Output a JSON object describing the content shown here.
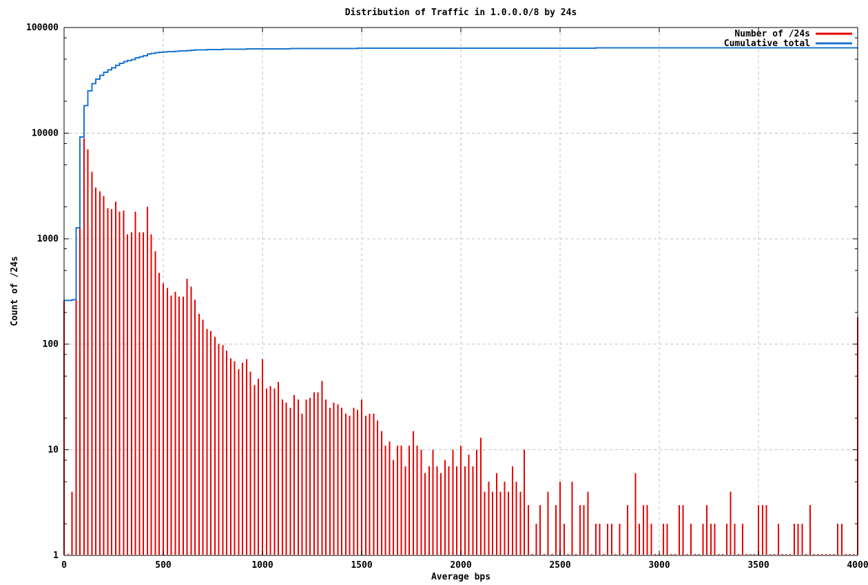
{
  "window": {
    "background": "#ffffff"
  },
  "chart_data": {
    "type": "bar",
    "title": "Distribution of Traffic in 1.0.0.0/8 by 24s",
    "xlabel": "Average bps",
    "ylabel": "Count of /24s",
    "x_scale": "linear",
    "y_scale": "log",
    "xlim": [
      0,
      4000
    ],
    "ylim": [
      1,
      100000
    ],
    "x_ticks": [
      0,
      500,
      1000,
      1500,
      2000,
      2500,
      3000,
      3500,
      4000
    ],
    "y_ticks": [
      1,
      10,
      100,
      1000,
      10000,
      100000
    ],
    "y_minor_tick_multipliers": [
      2,
      5,
      8
    ],
    "grid": true,
    "legend_position": "top-right-inside",
    "colors": {
      "bars": "#e60000",
      "cumulative": "#1874cd",
      "grid": "#bfbfbf",
      "axis": "#000000",
      "text": "#000000"
    },
    "bin_width_bps": 20,
    "series": [
      {
        "name": "Number of /24s",
        "style": "impulses",
        "color_key": "bars",
        "x_start": 0,
        "x_step": 20,
        "values": [
          260,
          1,
          4,
          1000,
          7900,
          9000,
          7000,
          4300,
          3050,
          2800,
          2520,
          1950,
          1900,
          2250,
          1800,
          1850,
          1100,
          1150,
          1800,
          1150,
          1150,
          2000,
          1100,
          760,
          475,
          380,
          342,
          290,
          315,
          282,
          283,
          416,
          350,
          265,
          194,
          171,
          140,
          133,
          117,
          101,
          98,
          87,
          74,
          69,
          58,
          67,
          72,
          55,
          41,
          47,
          72,
          38,
          40,
          38,
          44,
          30,
          28,
          25,
          33,
          30,
          22,
          30,
          31,
          35,
          35,
          45,
          30,
          25,
          28,
          27,
          25,
          22,
          21,
          25,
          24,
          30,
          21,
          22,
          22,
          19,
          15,
          11,
          12,
          8,
          11,
          11,
          7,
          11,
          15,
          11,
          10,
          6,
          7,
          10,
          7,
          6,
          8,
          7,
          10,
          7,
          11,
          7,
          9,
          7,
          10,
          13,
          4,
          5,
          4,
          6,
          4,
          5,
          4,
          7,
          5,
          4,
          10,
          3,
          1,
          2,
          3,
          1,
          4,
          1,
          3,
          5,
          2,
          1,
          5,
          1,
          3,
          3,
          4,
          1,
          2,
          2,
          1,
          2,
          2,
          1,
          2,
          1,
          3,
          1,
          6,
          2,
          3,
          3,
          2,
          1,
          1,
          2,
          2,
          1,
          1,
          3,
          3,
          1,
          2,
          1,
          1,
          2,
          3,
          2,
          2,
          1,
          1,
          2,
          4,
          2,
          1,
          2,
          1,
          1,
          1,
          3,
          3,
          3,
          1,
          1,
          2,
          1,
          1,
          1,
          2,
          2,
          2,
          1,
          3,
          1,
          1,
          1,
          1,
          1,
          1,
          2,
          2,
          1,
          1,
          1,
          180
        ]
      },
      {
        "name": "Cumulative total",
        "style": "steps",
        "color_key": "cumulative",
        "derived": "running_sum_of_first_series",
        "final_total": 64278
      }
    ]
  }
}
